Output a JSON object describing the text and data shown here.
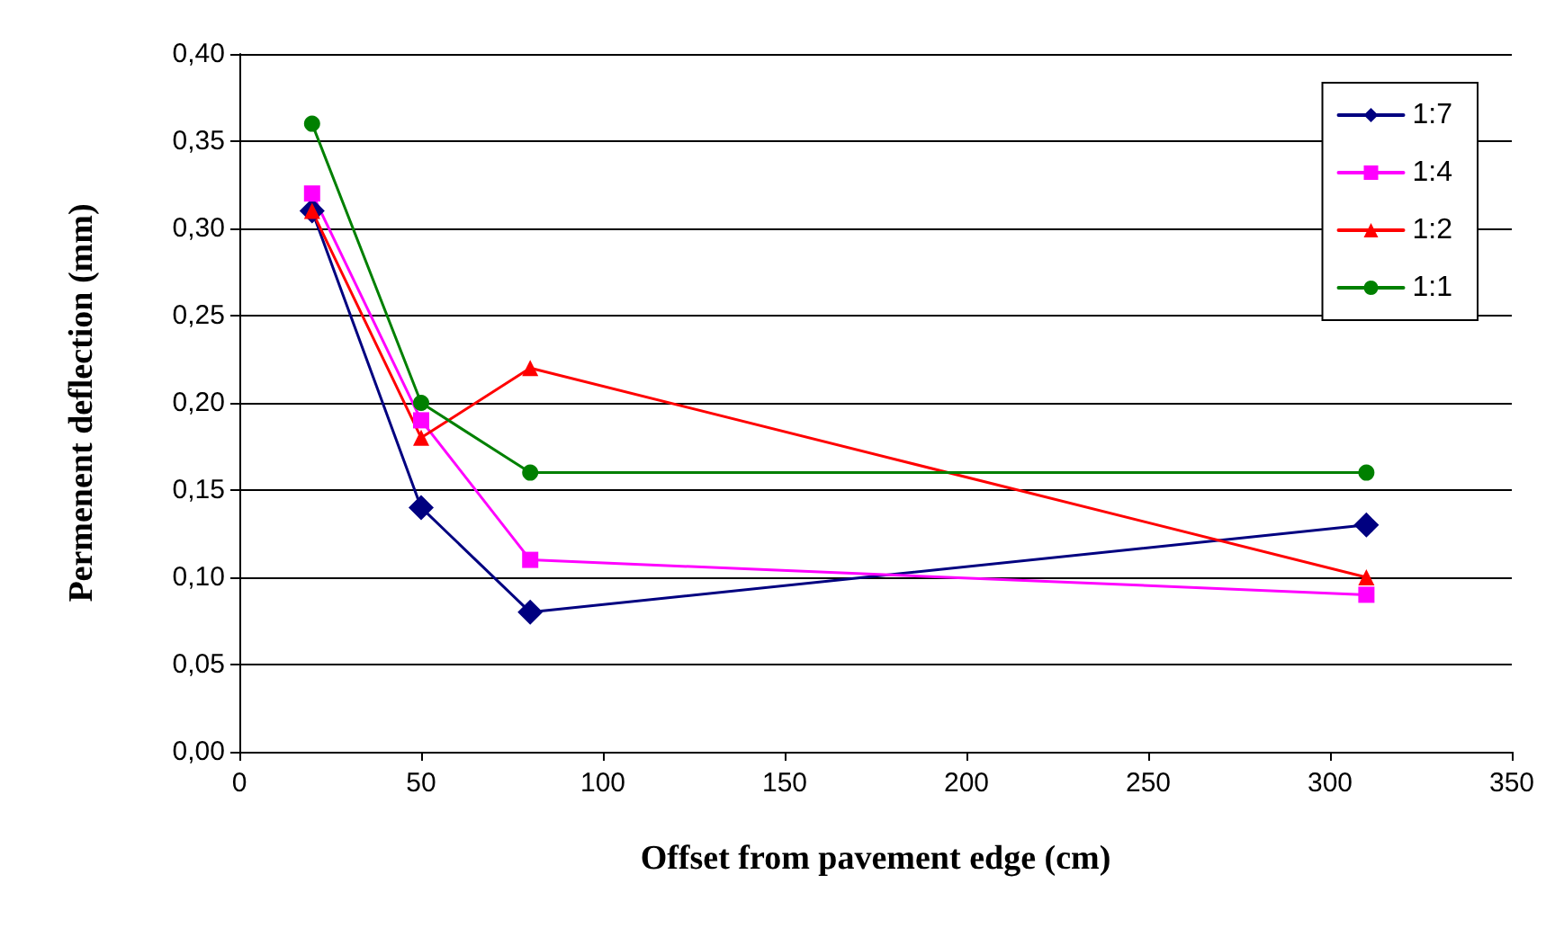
{
  "chart_data": {
    "type": "line",
    "xlabel": "Offset from pavement edge (cm)",
    "ylabel": "Permenent deflection (mm)",
    "x": [
      20,
      50,
      80,
      310
    ],
    "series": [
      {
        "name": "1:7",
        "color": "#000080",
        "marker": "diamond",
        "values": [
          0.31,
          0.14,
          0.08,
          0.13
        ]
      },
      {
        "name": "1:4",
        "color": "#ff00ff",
        "marker": "square",
        "values": [
          0.32,
          0.19,
          0.11,
          0.09
        ]
      },
      {
        "name": "1:2",
        "color": "#ff0000",
        "marker": "triangle",
        "values": [
          0.31,
          0.18,
          0.22,
          0.1
        ]
      },
      {
        "name": "1:1",
        "color": "#008000",
        "marker": "circle",
        "values": [
          0.36,
          0.2,
          0.16,
          0.16
        ]
      }
    ],
    "xlim": [
      0,
      350
    ],
    "xticks": [
      0,
      50,
      100,
      150,
      200,
      250,
      300,
      350
    ],
    "ylim": [
      0,
      0.4
    ],
    "yticks": [
      {
        "value": 0,
        "label": "0,00"
      },
      {
        "value": 0.05,
        "label": "0,05"
      },
      {
        "value": 0.1,
        "label": "0,10"
      },
      {
        "value": 0.15,
        "label": "0,15"
      },
      {
        "value": 0.2,
        "label": "0,20"
      },
      {
        "value": 0.25,
        "label": "0,25"
      },
      {
        "value": 0.3,
        "label": "0,30"
      },
      {
        "value": 0.35,
        "label": "0,35"
      },
      {
        "value": 0.4,
        "label": "0,40"
      }
    ],
    "grid": "y",
    "legend": "top right",
    "line_style": "solid"
  }
}
